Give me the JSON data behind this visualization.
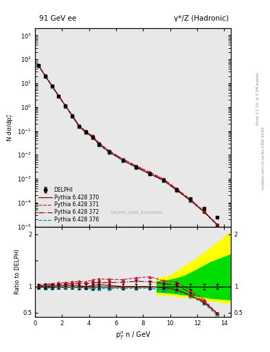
{
  "title_left": "91 GeV ee",
  "title_right": "γ*/Z (Hadronic)",
  "ylabel_main": "N dσ/dp$_T^n$",
  "ylabel_ratio": "Ratio to DELPHI",
  "xlabel": "p$_T^n$ n / GeV",
  "watermark": "DELPHI_1996_S3430090",
  "right_label1": "Rivet 3.1.10; ≥ 3.2M events",
  "right_label2": "mcplots.cern.ch [arXiv:1306.3436]",
  "delphi_x": [
    0.25,
    0.75,
    1.25,
    1.75,
    2.25,
    2.75,
    3.25,
    3.75,
    4.25,
    4.75,
    5.5,
    6.5,
    7.5,
    8.5,
    9.5,
    10.5,
    11.5,
    12.5,
    13.5
  ],
  "delphi_y": [
    55.0,
    20.0,
    7.5,
    2.8,
    1.1,
    0.42,
    0.155,
    0.09,
    0.055,
    0.027,
    0.013,
    0.006,
    0.003,
    0.0016,
    0.0009,
    0.00035,
    0.00015,
    6e-05,
    2.5e-05
  ],
  "delphi_yerr": [
    2.5,
    0.9,
    0.35,
    0.13,
    0.05,
    0.02,
    0.008,
    0.004,
    0.003,
    0.0013,
    0.0006,
    0.0003,
    0.00015,
    8e-05,
    4e-05,
    2e-05,
    8e-06,
    3e-06,
    1.2e-06
  ],
  "py370_x": [
    0.25,
    0.75,
    1.25,
    1.75,
    2.25,
    2.75,
    3.25,
    3.75,
    4.25,
    4.75,
    5.5,
    6.5,
    7.5,
    8.5,
    9.5,
    10.5,
    11.5,
    12.5,
    13.5
  ],
  "py370_y": [
    55.0,
    20.0,
    7.6,
    2.85,
    1.12,
    0.43,
    0.158,
    0.09,
    0.056,
    0.028,
    0.0133,
    0.006,
    0.003,
    0.0016,
    0.00088,
    0.00033,
    0.000125,
    4.2e-05,
    1.2e-05
  ],
  "py371_x": [
    0.25,
    0.75,
    1.25,
    1.75,
    2.25,
    2.75,
    3.25,
    3.75,
    4.25,
    4.75,
    5.5,
    6.5,
    7.5,
    8.5,
    9.5,
    10.5,
    11.5,
    12.5,
    13.5
  ],
  "py371_y": [
    56.5,
    21.0,
    7.9,
    3.0,
    1.18,
    0.46,
    0.17,
    0.098,
    0.062,
    0.031,
    0.0148,
    0.0068,
    0.0035,
    0.0019,
    0.001,
    0.00038,
    0.00014,
    4.5e-05,
    1.2e-05
  ],
  "py372_x": [
    0.25,
    0.75,
    1.25,
    1.75,
    2.25,
    2.75,
    3.25,
    3.75,
    4.25,
    4.75,
    5.5,
    6.5,
    7.5,
    8.5,
    9.5,
    10.5,
    11.5,
    12.5,
    13.5
  ],
  "py372_y": [
    55.5,
    20.5,
    7.75,
    2.92,
    1.15,
    0.445,
    0.165,
    0.095,
    0.059,
    0.029,
    0.014,
    0.0065,
    0.0033,
    0.00175,
    0.00095,
    0.00036,
    0.000132,
    4.3e-05,
    1.2e-05
  ],
  "py376_x": [
    0.25,
    0.75,
    1.25,
    1.75,
    2.25,
    2.75,
    3.25,
    3.75,
    4.25,
    4.75,
    5.5,
    6.5,
    7.5,
    8.5,
    9.5,
    10.5,
    11.5,
    12.5,
    13.5
  ],
  "py376_y": [
    54.0,
    19.5,
    7.3,
    2.75,
    1.08,
    0.415,
    0.152,
    0.087,
    0.053,
    0.026,
    0.0125,
    0.0058,
    0.0029,
    0.00155,
    0.00084,
    0.00032,
    0.000122,
    4.1e-05,
    1.1e-05
  ],
  "color_370": "#8B0000",
  "color_371": "#C41E3A",
  "color_372": "#8B0000",
  "color_376": "#008B8B",
  "color_delphi": "#000000",
  "band_yellow_lo": [
    0.85,
    0.83,
    0.8,
    0.77,
    0.73,
    0.68
  ],
  "band_yellow_hi": [
    1.15,
    1.22,
    1.38,
    1.55,
    1.75,
    2.05
  ],
  "band_green_lo": [
    0.9,
    0.88,
    0.85,
    0.82,
    0.78,
    0.75
  ],
  "band_green_hi": [
    1.1,
    1.13,
    1.2,
    1.33,
    1.47,
    1.62
  ],
  "band_x": [
    9.0,
    10.0,
    11.0,
    12.0,
    13.0,
    14.5
  ],
  "xlim": [
    0.0,
    14.5
  ],
  "ylim_main": [
    1e-05,
    2000
  ],
  "ylim_ratio": [
    0.42,
    2.15
  ],
  "bg_color": "#e8e8e8"
}
